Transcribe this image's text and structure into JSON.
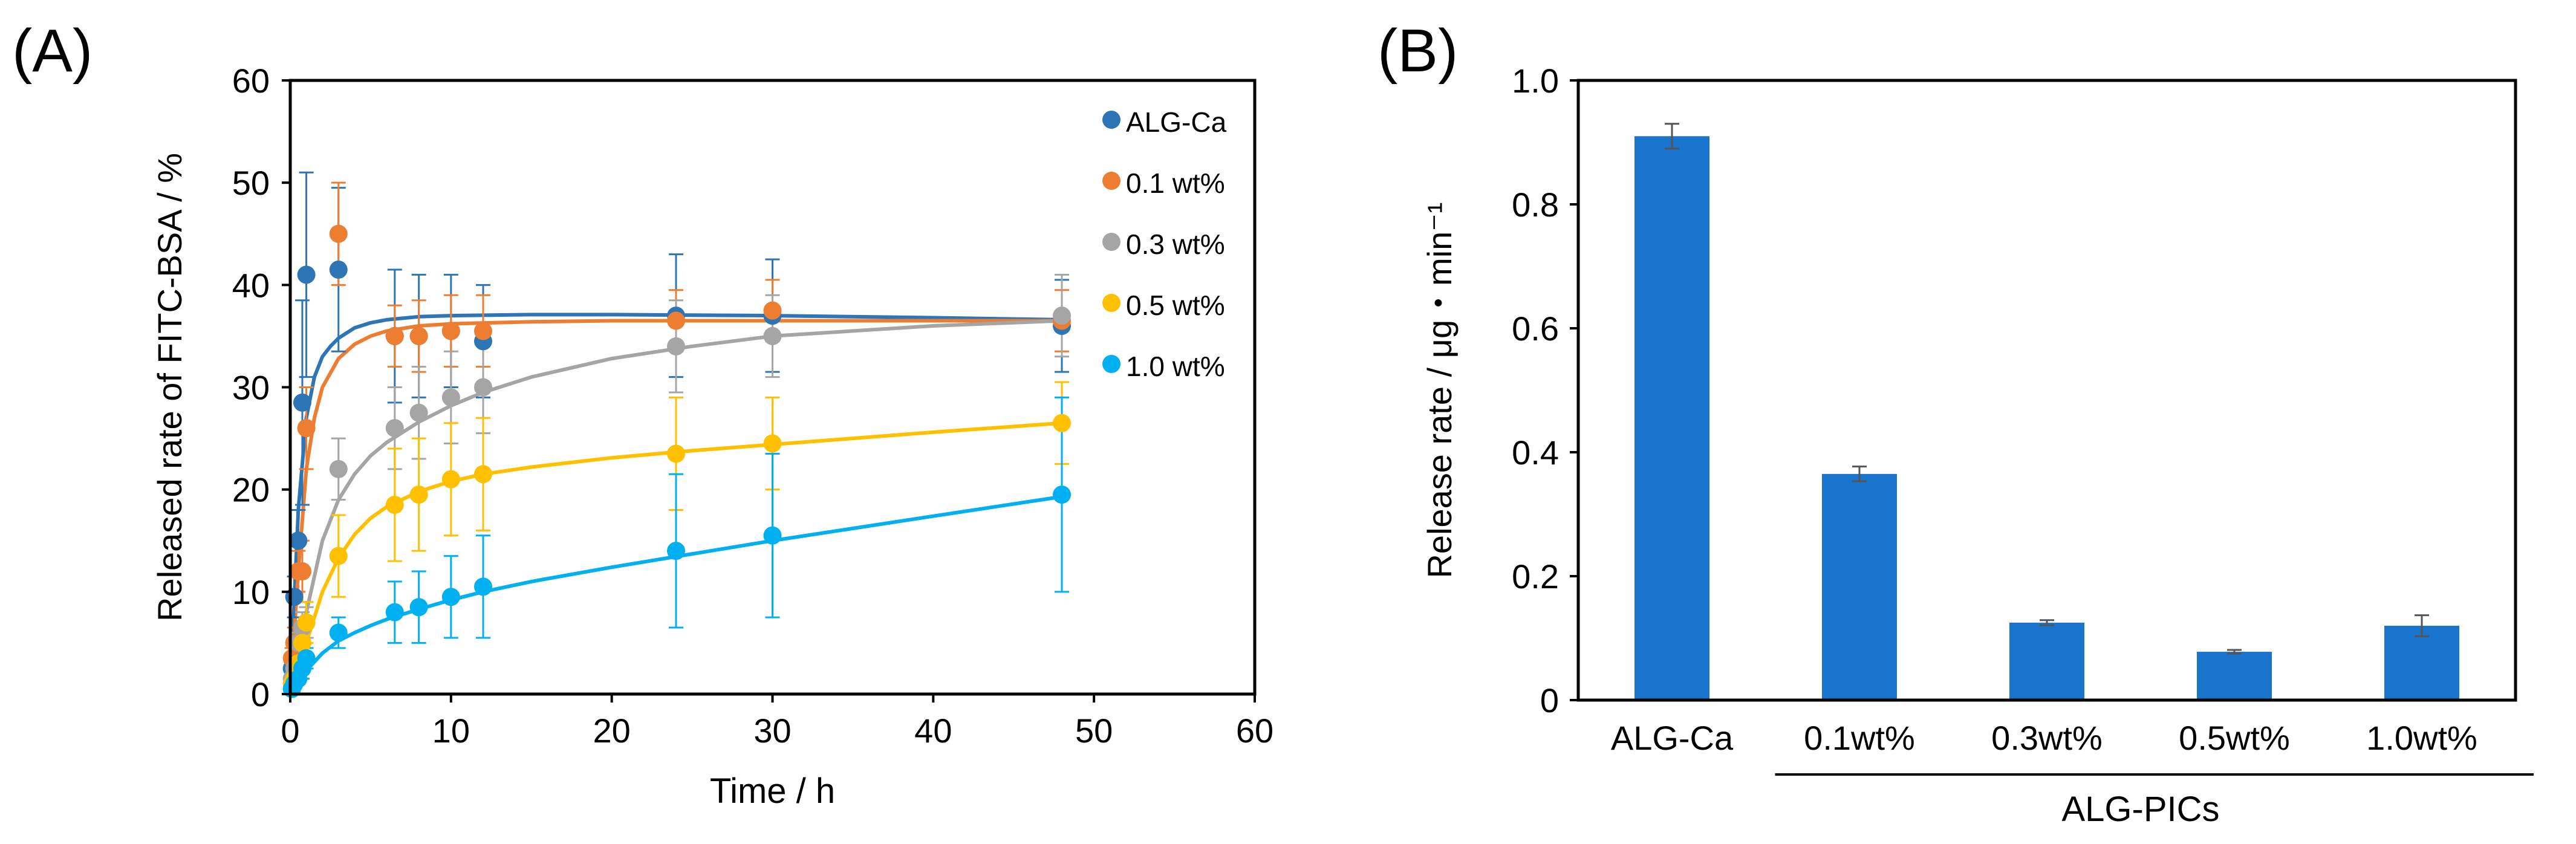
{
  "chart_data": [
    {
      "panel_label": "(A)",
      "type": "scatter",
      "xlabel": "Time / h",
      "ylabel": "Released rate of FITC-BSA / %",
      "xlim": [
        0,
        60
      ],
      "ylim": [
        0,
        60
      ],
      "xticks": [
        "0",
        "10",
        "20",
        "30",
        "40",
        "50",
        "60"
      ],
      "yticks": [
        "0",
        "10",
        "20",
        "30",
        "40",
        "50",
        "60"
      ],
      "grid": false,
      "legend_position": "top-right",
      "series": [
        {
          "name": "ALG-Ca",
          "color": "#2E75B6",
          "x": [
            0.1,
            0.25,
            0.5,
            0.75,
            1,
            3,
            6.5,
            8,
            10,
            12,
            24,
            30,
            48
          ],
          "y": [
            2.5,
            9.5,
            15,
            28.5,
            41,
            41.5,
            35,
            35,
            35.5,
            34.5,
            37,
            37,
            36
          ],
          "err": [
            1,
            2,
            3,
            10,
            10,
            8,
            6.5,
            6,
            5.5,
            5.5,
            6,
            5.5,
            4.5
          ],
          "fit_x": [
            0,
            0.5,
            1,
            1.5,
            2,
            2.5,
            3,
            4,
            5,
            6,
            8,
            10,
            15,
            20,
            30,
            40,
            48
          ],
          "fit_y": [
            0,
            18,
            27,
            31,
            33,
            34,
            34.8,
            35.8,
            36.3,
            36.6,
            36.9,
            37,
            37.1,
            37.1,
            37,
            36.8,
            36.6
          ]
        },
        {
          "name": "0.1 wt%",
          "color": "#ED7D31",
          "x": [
            0.1,
            0.25,
            0.5,
            0.75,
            1,
            3,
            6.5,
            8,
            10,
            12,
            24,
            30,
            48
          ],
          "y": [
            3.5,
            5,
            12,
            12,
            26,
            45,
            35,
            35,
            35.5,
            35.5,
            36.5,
            37.5,
            36.5
          ],
          "err": [
            1,
            1.5,
            2,
            3,
            4,
            5,
            3,
            3.5,
            3.5,
            3.5,
            3,
            3,
            3
          ],
          "fit_x": [
            0,
            0.5,
            1,
            1.5,
            2,
            3,
            4,
            5,
            6,
            8,
            10,
            15,
            20,
            30,
            40,
            48
          ],
          "fit_y": [
            0,
            12,
            22,
            27,
            30,
            32.8,
            34.2,
            35,
            35.5,
            36,
            36.2,
            36.4,
            36.5,
            36.5,
            36.5,
            36.5
          ]
        },
        {
          "name": "0.3 wt%",
          "color": "#A5A5A5",
          "x": [
            0.1,
            0.25,
            0.5,
            0.75,
            1,
            3,
            6.5,
            8,
            10,
            12,
            24,
            30,
            48
          ],
          "y": [
            1.5,
            2.5,
            5,
            6.5,
            7,
            22,
            26,
            27.5,
            29,
            30,
            34,
            35,
            37
          ],
          "err": [
            0.5,
            1,
            1,
            1.5,
            1.5,
            3,
            4,
            4.5,
            4.5,
            4.5,
            4.5,
            4,
            4
          ],
          "fit_x": [
            0,
            0.5,
            1,
            2,
            3,
            4,
            5,
            6,
            8,
            10,
            12,
            15,
            20,
            25,
            30,
            40,
            48
          ],
          "fit_y": [
            0,
            4,
            8,
            15,
            19,
            21.5,
            23.3,
            24.6,
            26.6,
            28.2,
            29.5,
            31,
            32.8,
            34,
            35,
            36,
            36.5
          ]
        },
        {
          "name": "0.5 wt%",
          "color": "#FFC000",
          "x": [
            0.1,
            0.25,
            0.5,
            0.75,
            1,
            3,
            6.5,
            8,
            10,
            12,
            24,
            30,
            48
          ],
          "y": [
            1,
            1.5,
            3,
            5,
            7,
            13.5,
            18.5,
            19.5,
            21,
            21.5,
            23.5,
            24.5,
            26.5
          ],
          "err": [
            0.5,
            0.5,
            1,
            1.5,
            2,
            4,
            5.5,
            5.5,
            5.5,
            5.5,
            5.5,
            4.5,
            4
          ],
          "fit_x": [
            0,
            0.5,
            1,
            2,
            3,
            4,
            5,
            6,
            8,
            10,
            12,
            15,
            20,
            25,
            30,
            40,
            48
          ],
          "fit_y": [
            0,
            2.5,
            5,
            10,
            13.3,
            15.6,
            17.2,
            18.3,
            19.8,
            20.8,
            21.5,
            22.2,
            23.1,
            23.8,
            24.4,
            25.6,
            26.5
          ]
        },
        {
          "name": "1.0 wt%",
          "color": "#00B0F0",
          "x": [
            0.1,
            0.25,
            0.5,
            0.75,
            1,
            3,
            6.5,
            8,
            10,
            12,
            24,
            30,
            48
          ],
          "y": [
            0.5,
            1,
            1.5,
            2.5,
            3.5,
            6,
            8,
            8.5,
            9.5,
            10.5,
            14,
            15.5,
            19.5
          ],
          "err": [
            0.3,
            0.5,
            0.5,
            1,
            1,
            1.5,
            3,
            3.5,
            4,
            5,
            7.5,
            8,
            9.5
          ],
          "fit_x": [
            0,
            0.5,
            1,
            2,
            3,
            4,
            5,
            6,
            8,
            10,
            12,
            15,
            20,
            25,
            30,
            40,
            48
          ],
          "fit_y": [
            0,
            1.2,
            2.3,
            4,
            5.2,
            6,
            6.7,
            7.3,
            8.3,
            9.2,
            10,
            11,
            12.4,
            13.7,
            15,
            17.4,
            19.3
          ]
        }
      ]
    },
    {
      "panel_label": "(B)",
      "type": "bar",
      "xlabel": "",
      "ylabel": "Release rate / μg・min⁻¹",
      "ylim": [
        0,
        1.0
      ],
      "yticks": [
        "0",
        "0.2",
        "0.4",
        "0.6",
        "0.8",
        "1.0"
      ],
      "grid": false,
      "categories": [
        "ALG-Ca",
        "0.1wt%",
        "0.3wt%",
        "0.5wt%",
        "1.0wt%"
      ],
      "values": [
        0.91,
        0.365,
        0.125,
        0.078,
        0.12
      ],
      "errors": [
        0.02,
        0.012,
        0.004,
        0.003,
        0.017
      ],
      "bar_color": "#1874CD",
      "group_label": "ALG-PICs",
      "group_categories": [
        "0.1wt%",
        "0.3wt%",
        "0.5wt%",
        "1.0wt%"
      ]
    }
  ]
}
